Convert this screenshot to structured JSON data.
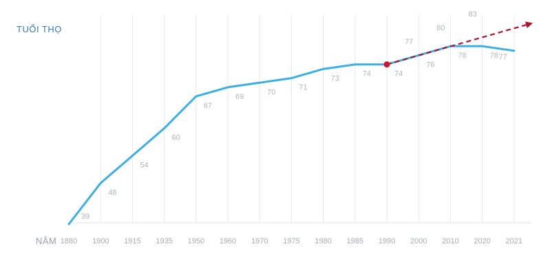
{
  "chart_data": {
    "type": "line",
    "ylabel": "TUỔI THỌ",
    "xlabel": "NĂM",
    "categories": [
      "1880",
      "1900",
      "1915",
      "1935",
      "1950",
      "1960",
      "1970",
      "1975",
      "1980",
      "1985",
      "1990",
      "2000",
      "2010",
      "2020",
      "2021"
    ],
    "ylim": [
      39,
      83
    ],
    "grid": true,
    "series": [
      {
        "color": "#3ab0e2",
        "style": "solid",
        "x": [
          "1880",
          "1900",
          "1915",
          "1935",
          "1950",
          "1960",
          "1970",
          "1975",
          "1980",
          "1985",
          "1990",
          "2000",
          "2010",
          "2020",
          "2021"
        ],
        "values": [
          39,
          48,
          54,
          60,
          67,
          69,
          70,
          71,
          73,
          74,
          74,
          76,
          78,
          78,
          77
        ]
      },
      {
        "color": "#b0122e",
        "style": "dashed",
        "arrow": true,
        "x": [
          "1990",
          "2000",
          "2010",
          "2020",
          "2021"
        ],
        "values": [
          74,
          77,
          80,
          83,
          83
        ]
      }
    ],
    "highlight_point": {
      "x": "1990",
      "value": 74,
      "color": "#d0142c"
    }
  }
}
